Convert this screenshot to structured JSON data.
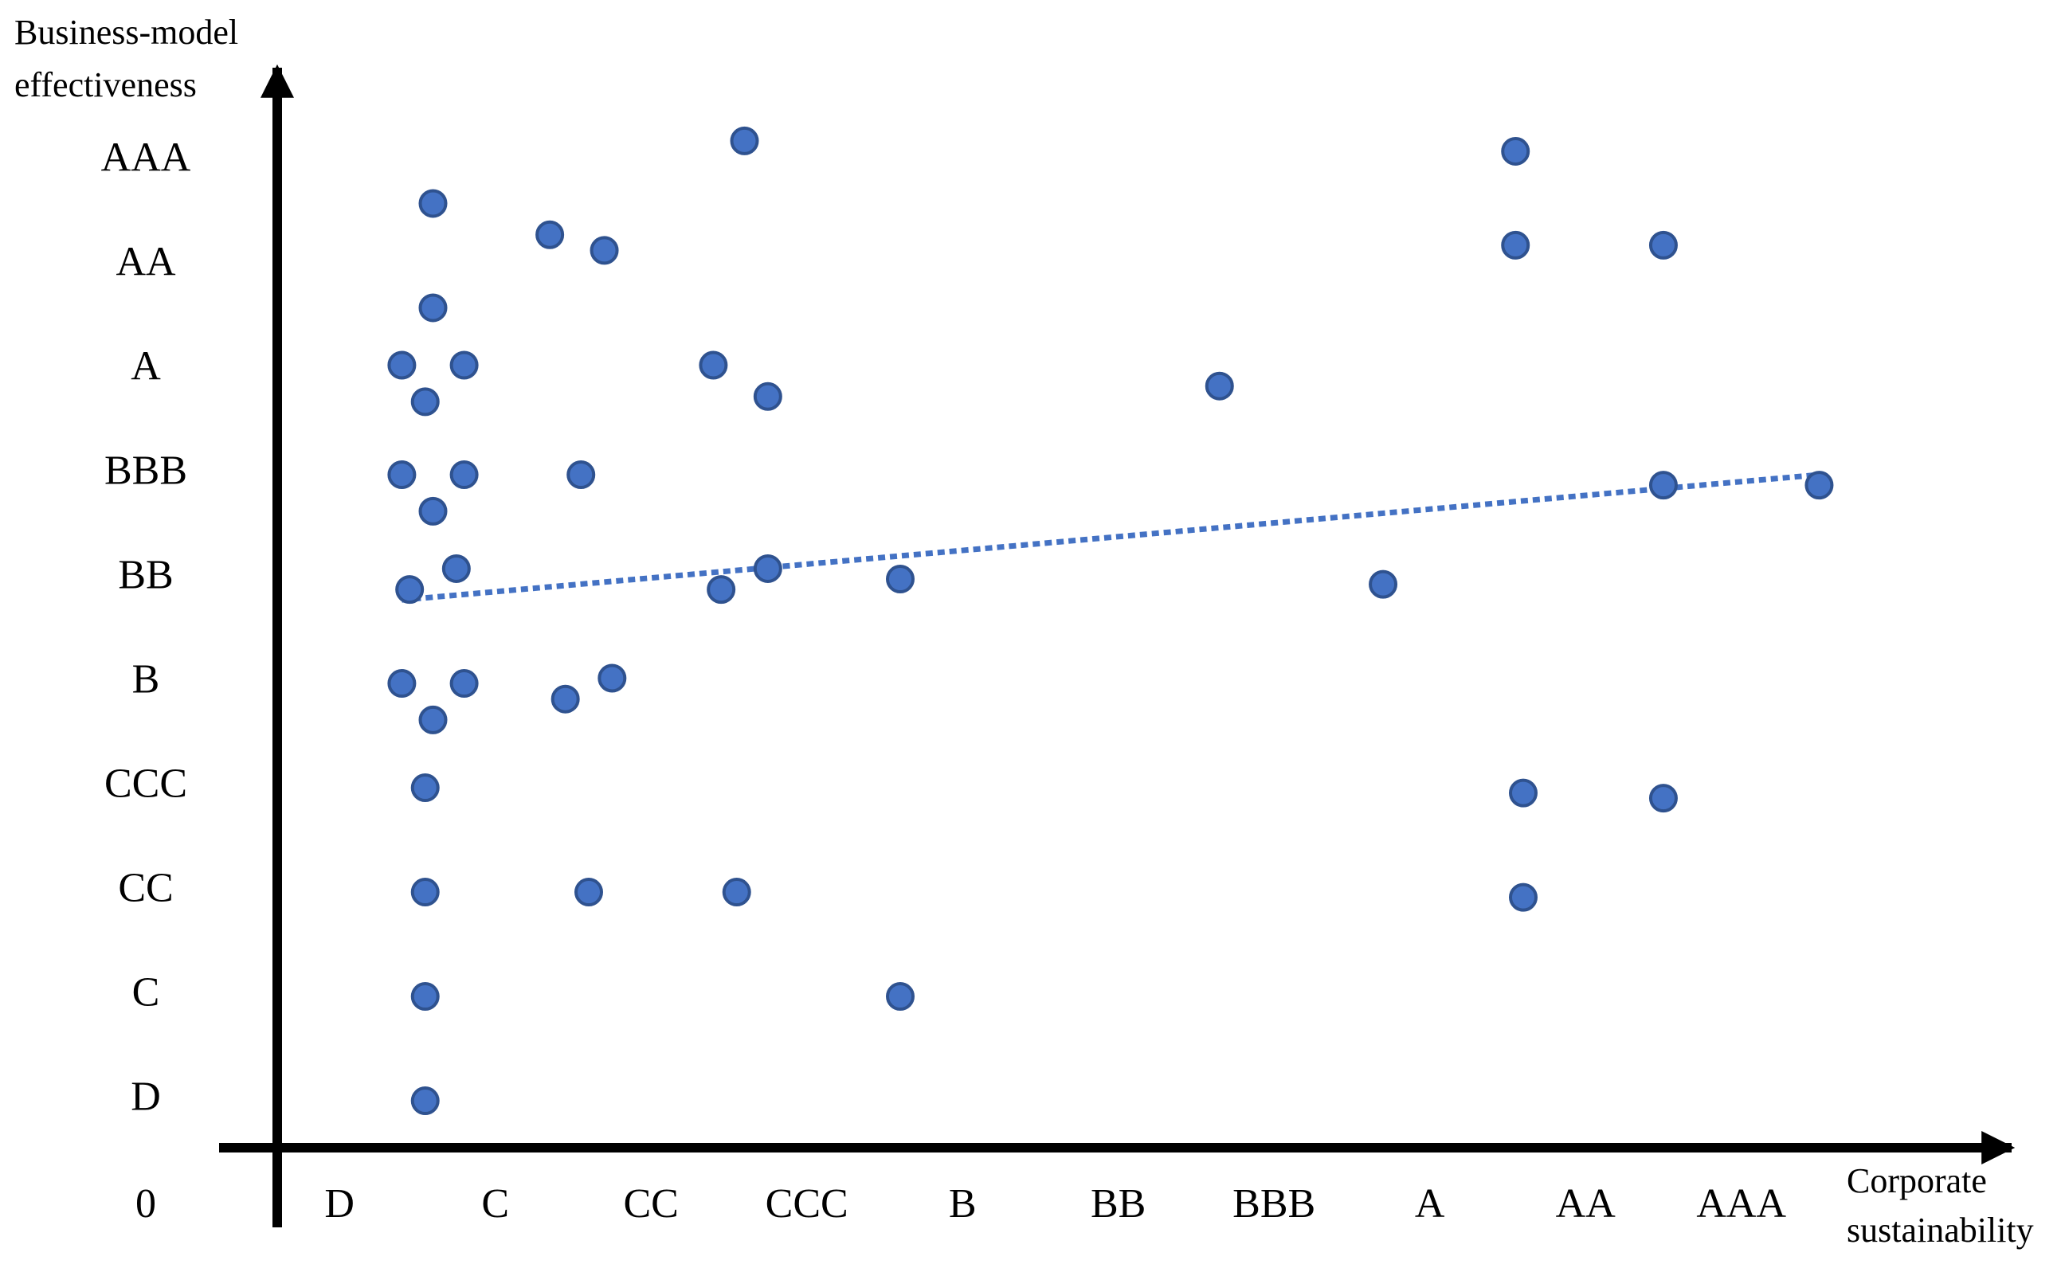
{
  "chart_data": {
    "type": "scatter",
    "xlabel": [
      "Corporate",
      "sustainability"
    ],
    "ylabel": [
      "Business-model",
      "effectiveness"
    ],
    "x_categories": [
      "0",
      "D",
      "C",
      "CC",
      "CCC",
      "B",
      "BB",
      "BBB",
      "A",
      "AA",
      "AAA"
    ],
    "y_categories": [
      "0",
      "D",
      "C",
      "CC",
      "CCC",
      "B",
      "BB",
      "BBB",
      "A",
      "AA",
      "AAA"
    ],
    "xlim": [
      0,
      10.6
    ],
    "ylim": [
      0,
      10
    ],
    "points": [
      {
        "x": 1.0,
        "y": 9.05
      },
      {
        "x": 1.0,
        "y": 8.05
      },
      {
        "x": 0.8,
        "y": 7.5
      },
      {
        "x": 1.2,
        "y": 7.5
      },
      {
        "x": 0.95,
        "y": 7.15
      },
      {
        "x": 0.8,
        "y": 6.45
      },
      {
        "x": 1.2,
        "y": 6.45
      },
      {
        "x": 1.0,
        "y": 6.1
      },
      {
        "x": 0.85,
        "y": 5.35
      },
      {
        "x": 1.15,
        "y": 5.55
      },
      {
        "x": 0.8,
        "y": 4.45
      },
      {
        "x": 1.2,
        "y": 4.45
      },
      {
        "x": 1.0,
        "y": 4.1
      },
      {
        "x": 0.95,
        "y": 3.45
      },
      {
        "x": 0.95,
        "y": 2.45
      },
      {
        "x": 0.95,
        "y": 1.45
      },
      {
        "x": 0.95,
        "y": 0.45
      },
      {
        "x": 1.75,
        "y": 8.75
      },
      {
        "x": 2.1,
        "y": 8.6
      },
      {
        "x": 1.95,
        "y": 6.45
      },
      {
        "x": 1.85,
        "y": 4.3
      },
      {
        "x": 2.15,
        "y": 4.5
      },
      {
        "x": 2.0,
        "y": 2.45
      },
      {
        "x": 3.0,
        "y": 9.65
      },
      {
        "x": 2.8,
        "y": 7.5
      },
      {
        "x": 3.15,
        "y": 7.2
      },
      {
        "x": 2.85,
        "y": 5.35
      },
      {
        "x": 3.15,
        "y": 5.55
      },
      {
        "x": 2.95,
        "y": 2.45
      },
      {
        "x": 4.0,
        "y": 5.45
      },
      {
        "x": 4.0,
        "y": 1.45
      },
      {
        "x": 6.05,
        "y": 7.3
      },
      {
        "x": 7.1,
        "y": 5.4
      },
      {
        "x": 7.95,
        "y": 9.55
      },
      {
        "x": 7.95,
        "y": 8.65
      },
      {
        "x": 8.0,
        "y": 3.4
      },
      {
        "x": 8.0,
        "y": 2.4
      },
      {
        "x": 8.9,
        "y": 8.65
      },
      {
        "x": 8.9,
        "y": 6.35
      },
      {
        "x": 8.9,
        "y": 3.35
      },
      {
        "x": 9.9,
        "y": 6.35
      }
    ],
    "trendline": {
      "type": "linear",
      "x": [
        0.8,
        9.9
      ],
      "y": [
        5.25,
        6.45
      ],
      "style": "dotted"
    }
  }
}
